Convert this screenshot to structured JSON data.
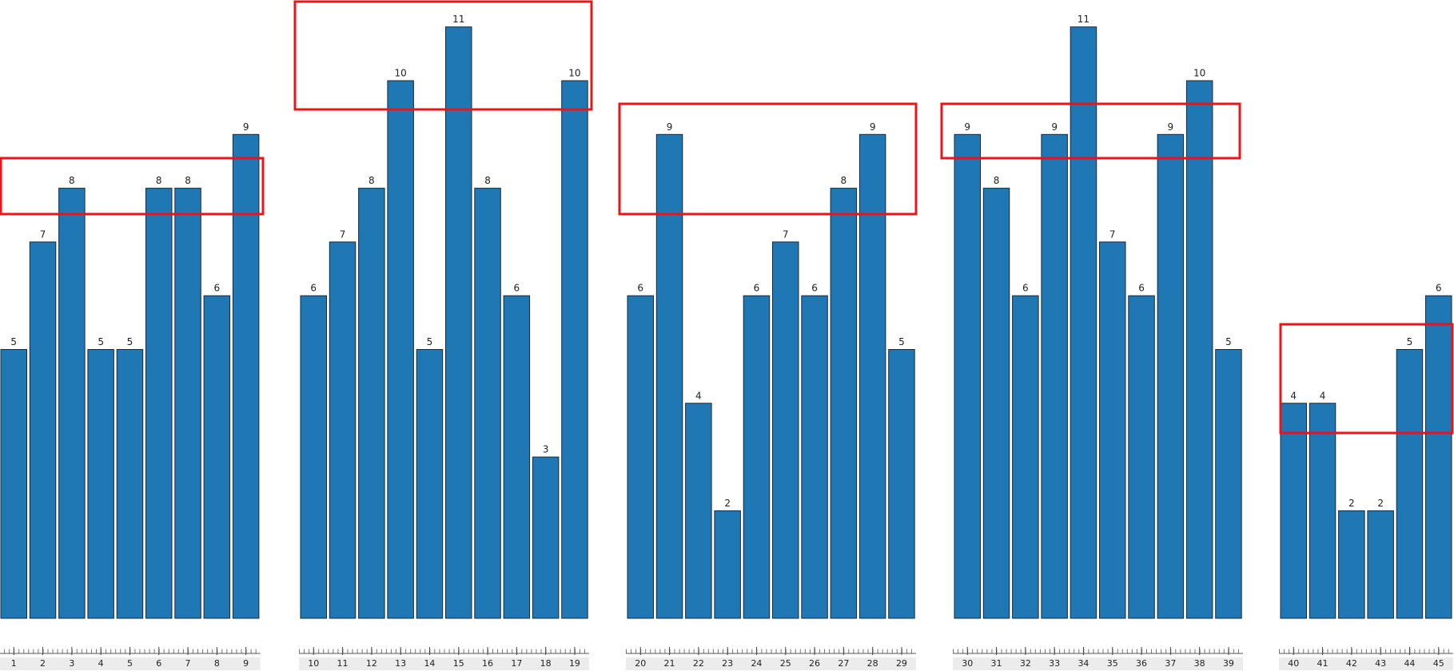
{
  "chart_data": [
    {
      "type": "bar",
      "color": "#1f77b4",
      "categories": [
        "1",
        "2",
        "3",
        "4",
        "5",
        "6",
        "7",
        "8",
        "9"
      ],
      "values": [
        5,
        7,
        8,
        5,
        5,
        8,
        8,
        6,
        9
      ]
    },
    {
      "type": "bar",
      "color": "#1f77b4",
      "categories": [
        "10",
        "11",
        "12",
        "13",
        "14",
        "15",
        "16",
        "17",
        "18",
        "19"
      ],
      "values": [
        6,
        7,
        8,
        10,
        5,
        11,
        8,
        6,
        3,
        10
      ]
    },
    {
      "type": "bar",
      "color": "#1f77b4",
      "categories": [
        "20",
        "21",
        "22",
        "23",
        "24",
        "25",
        "26",
        "27",
        "28",
        "29"
      ],
      "values": [
        6,
        9,
        4,
        2,
        6,
        7,
        6,
        8,
        9,
        5
      ]
    },
    {
      "type": "bar",
      "color": "#1f77b4",
      "categories": [
        "30",
        "31",
        "32",
        "33",
        "34",
        "35",
        "36",
        "37",
        "38",
        "39"
      ],
      "values": [
        9,
        8,
        6,
        9,
        11,
        7,
        6,
        9,
        10,
        5
      ]
    },
    {
      "type": "bar",
      "color": "#1f77b4",
      "categories": [
        "40",
        "41",
        "42",
        "43",
        "44",
        "45"
      ],
      "values": [
        4,
        4,
        2,
        2,
        5,
        6
      ]
    }
  ]
}
